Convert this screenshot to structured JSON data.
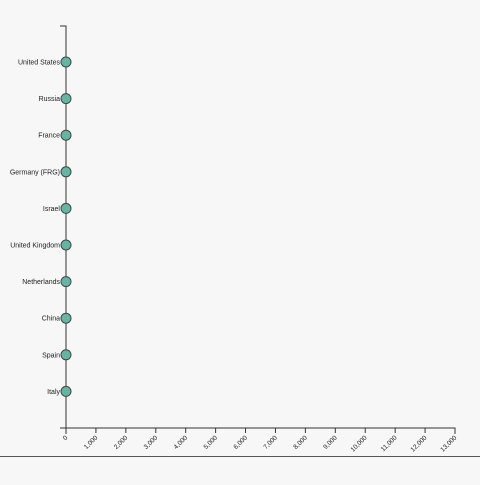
{
  "chart_data": {
    "type": "scatter",
    "title": "",
    "xlabel": "",
    "ylabel": "",
    "categories": [
      "United States",
      "Russia",
      "France",
      "Germany (FRG)",
      "Israel",
      "United Kingdom",
      "Netherlands",
      "China",
      "Spain",
      "Italy"
    ],
    "values": [
      0,
      0,
      0,
      0,
      0,
      0,
      0,
      0,
      0,
      0
    ],
    "xlim": [
      0,
      13000
    ],
    "xticks": [
      0,
      1000,
      2000,
      3000,
      4000,
      5000,
      6000,
      7000,
      8000,
      9000,
      10000,
      11000,
      12000,
      13000
    ],
    "xtick_labels": [
      "0",
      "1,000",
      "2,000",
      "3,000",
      "4,000",
      "5,000",
      "6,000",
      "7,000",
      "8,000",
      "9,000",
      "10,000",
      "11,000",
      "12,000",
      "13,000"
    ],
    "grid": false,
    "legend": "none",
    "colors": {
      "point_fill": "#69b3a2",
      "point_stroke": "#3b4a47",
      "axis": "#333333",
      "background": "#f7f7f8"
    }
  }
}
